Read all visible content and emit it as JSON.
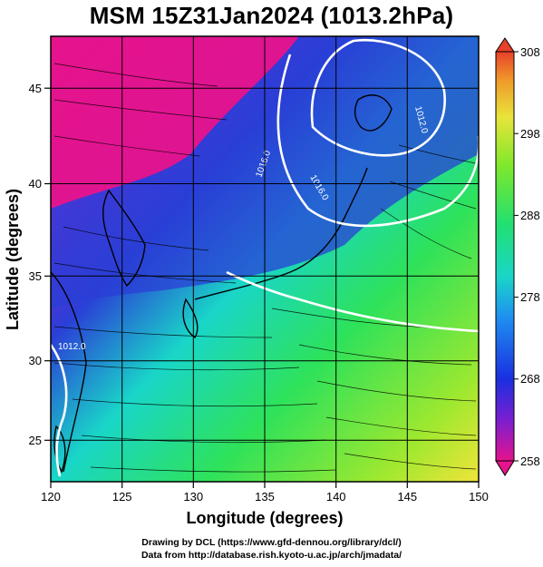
{
  "title": "MSM 15Z31Jan2024 (1013.2hPa)",
  "axes": {
    "xlabel": "Longitude (degrees)",
    "ylabel": "Latitude  (degrees)",
    "xticks": [
      "120",
      "125",
      "130",
      "135",
      "140",
      "145",
      "150"
    ],
    "yticks": [
      "25",
      "30",
      "35",
      "40",
      "45"
    ],
    "xlim": [
      120,
      150
    ],
    "ylim": [
      22.4,
      47.6
    ]
  },
  "colorbar": {
    "ticks": [
      "308",
      "298",
      "288",
      "278",
      "268",
      "258"
    ],
    "range": [
      258,
      308
    ]
  },
  "contour_labels": [
    "1012.0",
    "1016.0",
    "1012.0",
    "1016.0"
  ],
  "credits": {
    "line1": "Drawing by DCL (https://www.gfd-dennou.org/library/dcl/)",
    "line2": "Data from http://database.rish.kyoto-u.ac.jp/arch/jmadata/"
  },
  "colors": {
    "cold": "#e6138c",
    "cool": "#2a3fd6",
    "mild": "#19d6c8",
    "warm": "#2ee25a",
    "hot": "#f0e43a",
    "contour": "#ffffff",
    "land": "#000000"
  }
}
